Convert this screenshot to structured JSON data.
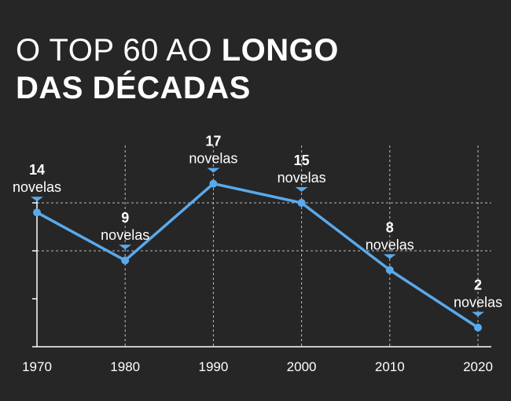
{
  "title": {
    "line1_light": "O TOP 60 AO ",
    "line1_bold": "LONGO",
    "line2_bold": "DAS DÉCADAS"
  },
  "colors": {
    "background": "#262626",
    "line": "#5aa9ec",
    "text": "#ffffff",
    "axis": "#ffffff",
    "grid": "#bbbbbb"
  },
  "chart_data": {
    "type": "line",
    "x": [
      "1970",
      "1980",
      "1990",
      "2000",
      "2010",
      "2020"
    ],
    "values": [
      14,
      9,
      17,
      15,
      8,
      2
    ],
    "value_unit": "novelas",
    "ylim": [
      0,
      20
    ],
    "grid": true,
    "xlabel": "",
    "ylabel": ""
  }
}
